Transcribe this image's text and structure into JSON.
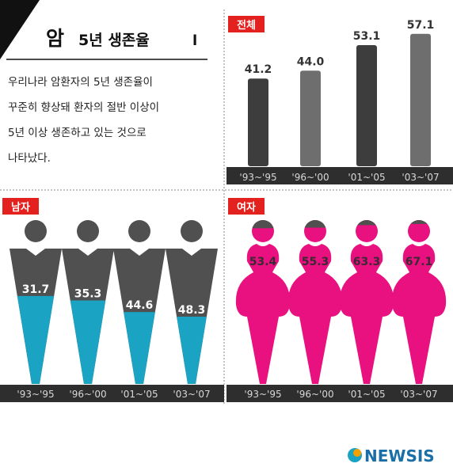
{
  "header": {
    "title_main": "암",
    "title_sub": "5년 생존율",
    "title_bar": "l"
  },
  "description": [
    "우리나라 암환자의 5년 생존율이",
    "꾸준히 향상돼 환자의 절반 이상이",
    "5년 이상 생존하고 있는 것으로",
    "나타났다."
  ],
  "brand": {
    "logo_text": "NEWSIS"
  },
  "colors": {
    "total_bar_dark": "#3d3d3d",
    "total_bar_light": "#6e6e6e",
    "male_head": "#505050",
    "male_fill": "#1aa3c3",
    "female_fill": "#e8117f",
    "female_head_top": "#505050",
    "tag_red": "#e3211e",
    "axis_bg": "#2e2e2e"
  },
  "chart_data": [
    {
      "type": "bar",
      "title": "전체",
      "categories": [
        "'93~'95",
        "'96~'00",
        "'01~'05",
        "'03~'07"
      ],
      "values": [
        41.2,
        44.0,
        53.1,
        57.1
      ],
      "value_labels": [
        "41.2",
        "44.0",
        "53.1",
        "57.1"
      ]
    },
    {
      "type": "bar",
      "title": "남자",
      "categories": [
        "'93~'95",
        "'96~'00",
        "'01~'05",
        "'03~'07"
      ],
      "values": [
        31.7,
        35.3,
        44.6,
        48.3
      ],
      "value_labels": [
        "31.7",
        "35.3",
        "44.6",
        "48.3"
      ]
    },
    {
      "type": "bar",
      "title": "여자",
      "categories": [
        "'93~'95",
        "'96~'00",
        "'01~'05",
        "'03~'07"
      ],
      "values": [
        53.4,
        55.3,
        63.3,
        67.1
      ],
      "value_labels": [
        "53.4",
        "55.3",
        "63.3",
        "67.1"
      ]
    }
  ]
}
